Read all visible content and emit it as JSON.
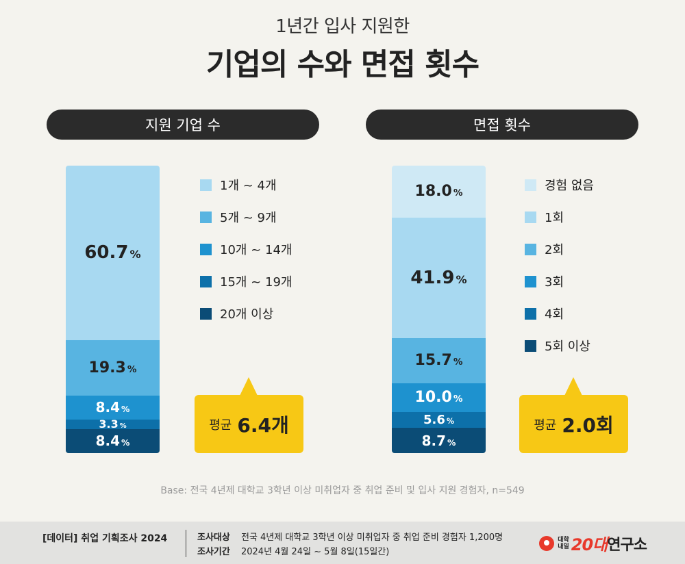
{
  "header": {
    "subtitle": "1년간 입사 지원한",
    "title": "기업의 수와 면접 횟수"
  },
  "chart_data": [
    {
      "type": "bar",
      "stacked": true,
      "title": "지원 기업 수",
      "unit": "%",
      "categories": [
        "1개 ~ 4개",
        "5개 ~ 9개",
        "10개 ~ 14개",
        "15개 ~ 19개",
        "20개 이상"
      ],
      "values": [
        60.7,
        19.3,
        8.4,
        3.3,
        8.4
      ],
      "value_labels": [
        "60.7",
        "19.3",
        "8.4",
        "3.3",
        "8.4"
      ],
      "colors": [
        "#a8d9f1",
        "#58b4e1",
        "#1e92cf",
        "#0d70a9",
        "#0b4c76"
      ],
      "label_colors": [
        "#222222",
        "#222222",
        "#ffffff",
        "#ffffff",
        "#ffffff"
      ],
      "label_sizes": [
        26,
        22,
        20,
        16,
        20
      ],
      "average_label": "평균",
      "average_value": "6.4개"
    },
    {
      "type": "bar",
      "stacked": true,
      "title": "면접 횟수",
      "unit": "%",
      "categories": [
        "경험 없음",
        "1회",
        "2회",
        "3회",
        "4회",
        "5회 이상"
      ],
      "values": [
        18.0,
        41.9,
        15.7,
        10.0,
        5.6,
        8.7
      ],
      "value_labels": [
        "18.0",
        "41.9",
        "15.7",
        "10.0",
        "5.6",
        "8.7"
      ],
      "colors": [
        "#cfe9f5",
        "#a8d9f1",
        "#58b4e1",
        "#1e92cf",
        "#0d70a9",
        "#0b4c76"
      ],
      "label_colors": [
        "#222222",
        "#222222",
        "#222222",
        "#ffffff",
        "#ffffff",
        "#ffffff"
      ],
      "label_sizes": [
        22,
        26,
        22,
        22,
        18,
        20
      ],
      "average_label": "평균",
      "average_value": "2.0회"
    }
  ],
  "base_note": "Base: 전국 4년제 대학교 3학년 이상 미취업자 중 취업 준비 및 입사 지원 경험자, n=549",
  "footer": {
    "series": "[데이터] 취업 기획조사 2024",
    "target_label": "조사대상",
    "target_value": "전국 4년제 대학교 3학년 이상 미취업자 중 취업 준비 경험자 1,200명",
    "period_label": "조사기간",
    "period_value": "2024년 4월 24일 ~ 5월 8일(15일간)",
    "logo_small_1": "대학",
    "logo_small_2": "내일",
    "logo_num": "20대",
    "logo_name": "연구소"
  }
}
